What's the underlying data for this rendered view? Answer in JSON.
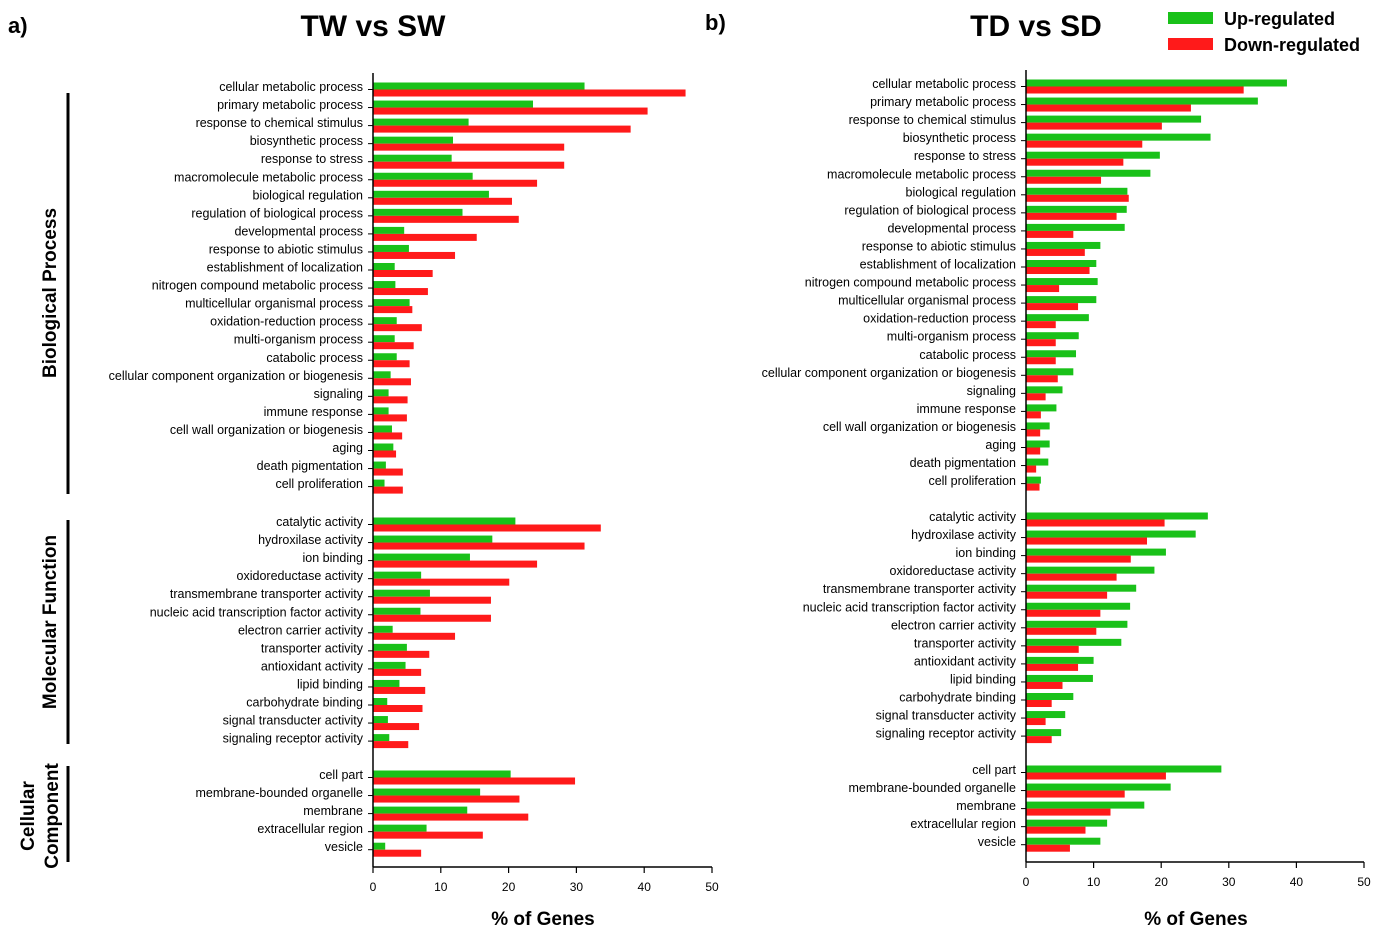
{
  "colors": {
    "up": "#19c119",
    "down": "#ff1a1a",
    "axis": "#000000"
  },
  "legend": {
    "up": "Up-regulated",
    "down": "Down-regulated",
    "placement": "top-right"
  },
  "groups": [
    "Biological Process",
    "Molecular Function",
    "Cellular\nComponent"
  ],
  "chart_data": [
    {
      "type": "bar",
      "orientation": "horizontal",
      "panel": "a)",
      "title": "TW vs SW",
      "xlabel": "% of Genes",
      "xlim": [
        0,
        50
      ],
      "xticks": [
        "0",
        "10",
        "20",
        "30",
        "40",
        "50"
      ],
      "grid": false,
      "categories": [
        "cellular metabolic process",
        "primary metabolic process",
        "response to chemical stimulus",
        "biosynthetic process",
        "response to stress",
        "macromolecule metabolic process",
        "biological regulation",
        "regulation of biological process",
        "developmental process",
        "response to abiotic stimulus",
        "establishment of localization",
        "nitrogen compound metabolic process",
        "multicellular organismal process",
        "oxidation-reduction process",
        "multi-organism process",
        "catabolic process",
        "cellular component organization or biogenesis",
        "signaling",
        "immune response",
        "cell wall organization or biogenesis",
        "aging",
        "death pigmentation",
        "cell proliferation",
        "catalytic activity",
        "hydroxilase activity",
        "ion binding",
        "oxidoreductase activity",
        "transmembrane transporter activity",
        "nucleic acid transcription factor activity",
        "electron carrier activity",
        "transporter activity",
        "antioxidant activity",
        "lipid binding",
        "carbohydrate binding",
        "signal transducter activity",
        "signaling receptor activity",
        "cell part",
        "membrane-bounded organelle",
        "membrane",
        "extracellular region",
        "vesicle"
      ],
      "group_sizes": [
        23,
        13,
        5
      ],
      "series": [
        {
          "name": "Up-regulated",
          "values": [
            31.2,
            23.6,
            14.1,
            11.8,
            11.6,
            14.7,
            17.1,
            13.2,
            4.6,
            5.3,
            3.2,
            3.3,
            5.4,
            3.5,
            3.2,
            3.5,
            2.6,
            2.3,
            2.3,
            2.8,
            3.0,
            1.9,
            1.7,
            21.0,
            17.6,
            14.3,
            7.1,
            8.4,
            7.0,
            2.9,
            5.0,
            4.8,
            3.9,
            2.1,
            2.2,
            2.4,
            20.3,
            15.8,
            13.9,
            7.9,
            1.8
          ]
        },
        {
          "name": "Down-regulated",
          "values": [
            46.1,
            40.5,
            38.0,
            28.2,
            28.2,
            24.2,
            20.5,
            21.5,
            15.3,
            12.1,
            8.8,
            8.1,
            5.8,
            7.2,
            6.0,
            5.4,
            5.6,
            5.1,
            5.0,
            4.3,
            3.4,
            4.4,
            4.4,
            33.6,
            31.2,
            24.2,
            20.1,
            17.4,
            17.4,
            12.1,
            8.3,
            7.1,
            7.7,
            7.3,
            6.8,
            5.2,
            29.8,
            21.6,
            22.9,
            16.2,
            7.1
          ]
        }
      ]
    },
    {
      "type": "bar",
      "orientation": "horizontal",
      "panel": "b)",
      "title": "TD vs SD",
      "xlabel": "% of Genes",
      "xlim": [
        0,
        50
      ],
      "xticks": [
        "0",
        "10",
        "20",
        "30",
        "40",
        "50"
      ],
      "grid": false,
      "categories": [
        "cellular metabolic process",
        "primary metabolic process",
        "response to chemical stimulus",
        "biosynthetic process",
        "response to stress",
        "macromolecule metabolic process",
        "biological regulation",
        "regulation of biological process",
        "developmental process",
        "response to abiotic stimulus",
        "establishment of localization",
        "nitrogen compound metabolic process",
        "multicellular organismal process",
        "oxidation-reduction process",
        "multi-organism process",
        "catabolic process",
        "cellular component organization or biogenesis",
        "signaling",
        "immune response",
        "cell wall organization or biogenesis",
        "aging",
        "death pigmentation",
        "cell proliferation",
        "catalytic activity",
        "hydroxilase activity",
        "ion binding",
        "oxidoreductase activity",
        "transmembrane transporter activity",
        "nucleic acid transcription factor activity",
        "electron carrier activity",
        "transporter activity",
        "antioxidant activity",
        "lipid binding",
        "carbohydrate binding",
        "signal transducter activity",
        "signaling receptor activity",
        "cell part",
        "membrane-bounded organelle",
        "membrane",
        "extracellular region",
        "vesicle"
      ],
      "group_sizes": [
        23,
        13,
        5
      ],
      "series": [
        {
          "name": "Up-regulated",
          "values": [
            38.6,
            34.3,
            25.9,
            27.3,
            19.8,
            18.4,
            15.0,
            14.9,
            14.6,
            11.0,
            10.4,
            10.6,
            10.4,
            9.3,
            7.8,
            7.4,
            7.0,
            5.4,
            4.5,
            3.5,
            3.5,
            3.3,
            2.2,
            26.9,
            25.1,
            20.7,
            19.0,
            16.3,
            15.4,
            15.0,
            14.1,
            10.0,
            9.9,
            7.0,
            5.8,
            5.2,
            28.9,
            21.4,
            17.5,
            12.0,
            11.0
          ]
        },
        {
          "name": "Down-regulated",
          "values": [
            32.2,
            24.4,
            20.1,
            17.2,
            14.4,
            11.1,
            15.2,
            13.4,
            7.0,
            8.7,
            9.4,
            4.9,
            7.7,
            4.4,
            4.4,
            4.4,
            4.7,
            2.9,
            2.2,
            2.1,
            2.1,
            1.5,
            2.0,
            20.5,
            17.9,
            15.5,
            13.4,
            12.0,
            11.0,
            10.4,
            7.8,
            7.7,
            5.4,
            3.8,
            2.9,
            3.8,
            20.7,
            14.6,
            12.5,
            8.8,
            6.5
          ]
        }
      ]
    }
  ]
}
